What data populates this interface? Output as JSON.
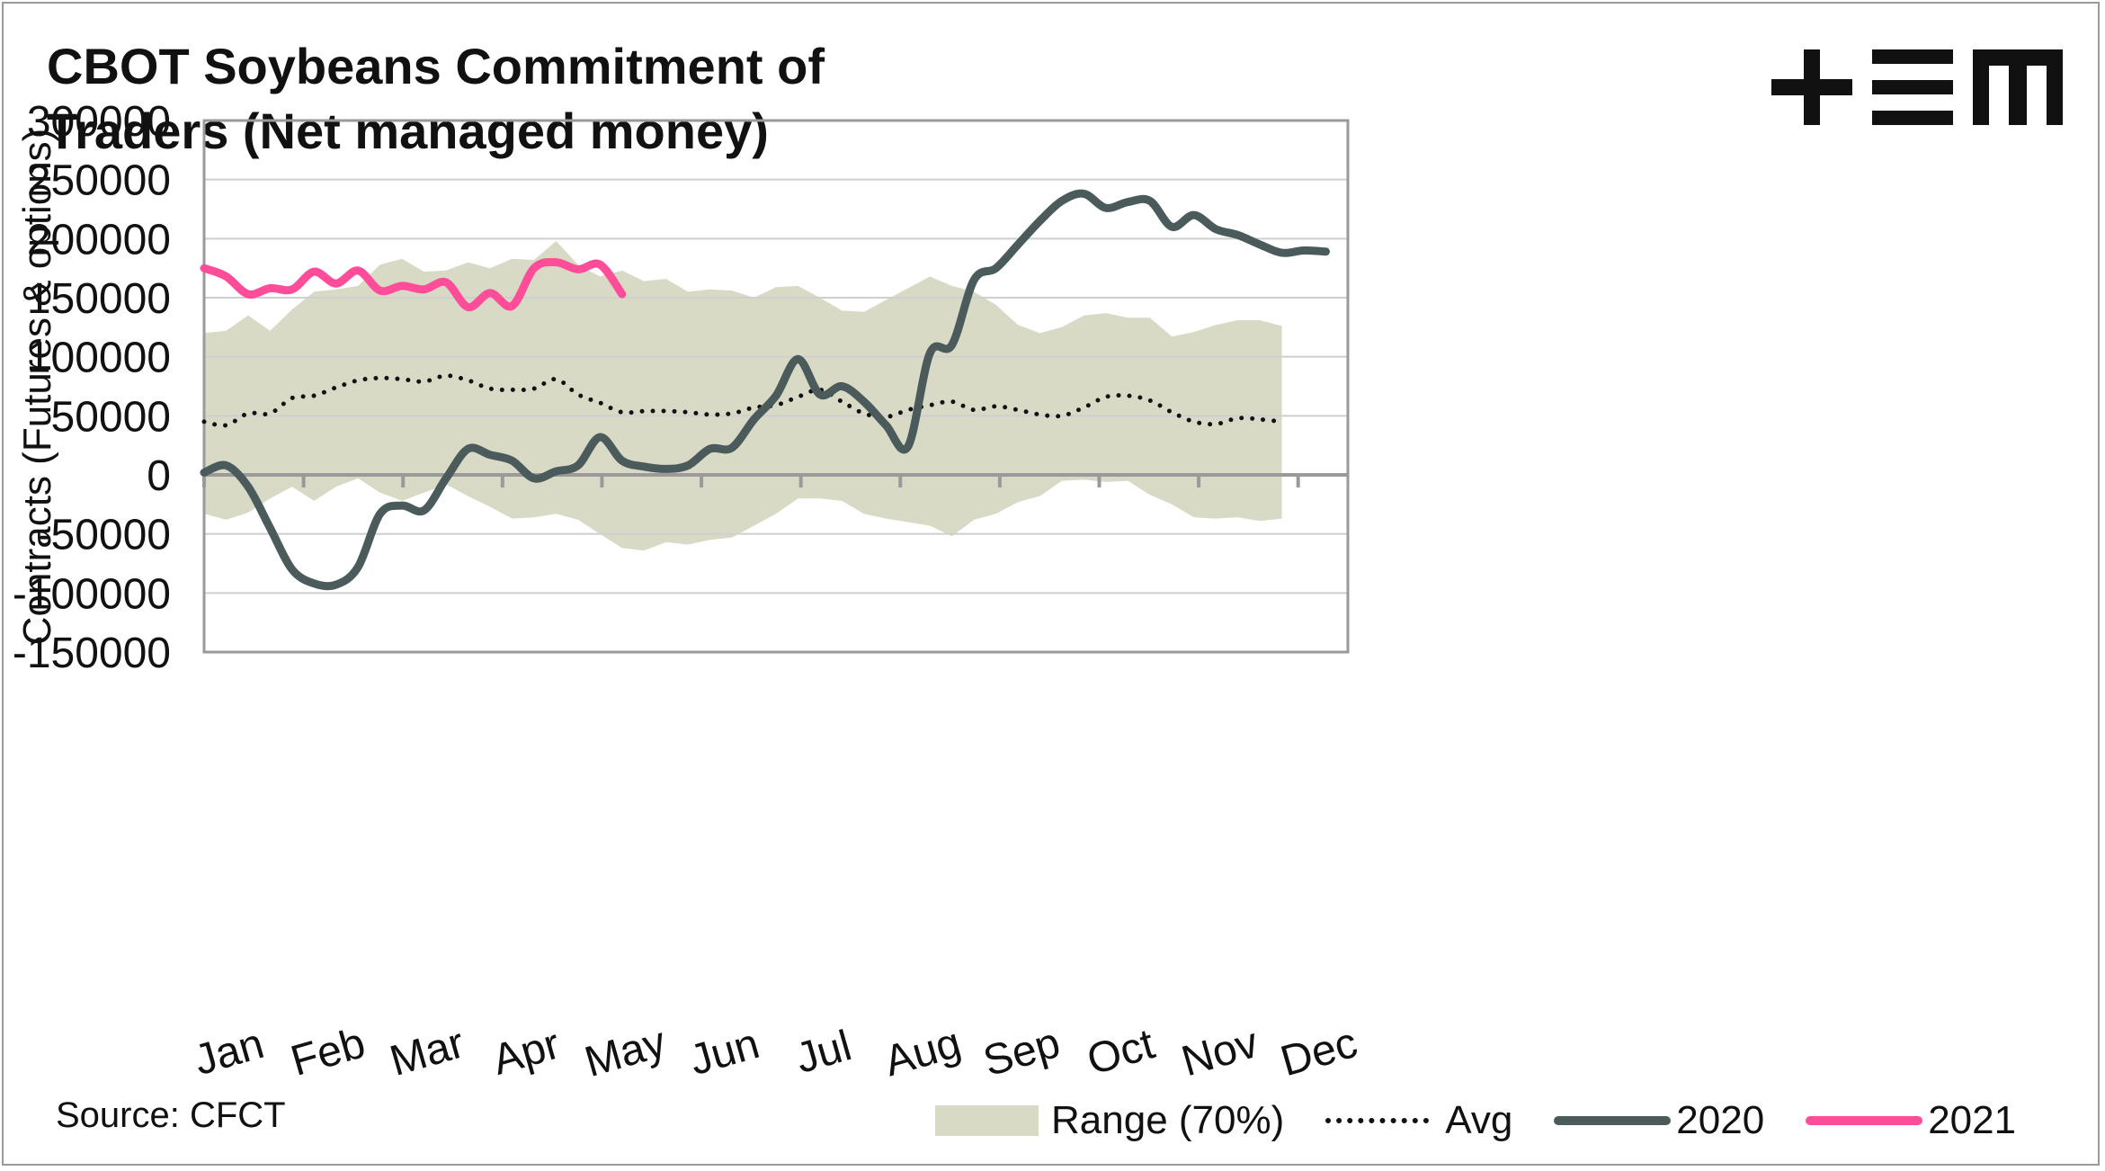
{
  "title": "CBOT Soybeans Commitment of\nTraders (Net managed money)",
  "logo": {
    "name": "tem-logo",
    "text": "TEM"
  },
  "source": "Source: CFCT",
  "colors": {
    "range": "#d9dac6",
    "avg": "#111111",
    "y2020": "#4b5a5a",
    "y2021": "#ff4d9a",
    "grid": "#cfcfcf",
    "axis": "#9a9a9a"
  },
  "chart_data": {
    "type": "line",
    "title": "CBOT Soybeans Commitment of Traders (Net managed money)",
    "xlabel": "",
    "ylabel": "Contracts (Futures & options)",
    "ylim": [
      -150000,
      300000
    ],
    "yticks": [
      300000,
      250000,
      200000,
      150000,
      100000,
      50000,
      0,
      -50000,
      -100000,
      -150000
    ],
    "ytick_labels": [
      "300000",
      "250000",
      "200000",
      "150000",
      "100000",
      "50000",
      "0",
      "-50000",
      "-100000",
      "-150000"
    ],
    "x_unit": "week",
    "x_range": [
      0,
      52
    ],
    "months": [
      "Jan",
      "Feb",
      "Mar",
      "Apr",
      "May",
      "Jun",
      "Jul",
      "Aug",
      "Sep",
      "Oct",
      "Nov",
      "Dec"
    ],
    "legend": [
      {
        "key": "range",
        "label": "Range (70%)"
      },
      {
        "key": "avg",
        "label": "Avg"
      },
      {
        "key": "y2020",
        "label": "2020"
      },
      {
        "key": "y2021",
        "label": "2021"
      }
    ],
    "range_upper": [
      [
        0,
        120000
      ],
      [
        1,
        122000
      ],
      [
        2,
        135000
      ],
      [
        3,
        122000
      ],
      [
        4,
        140000
      ],
      [
        5,
        155000
      ],
      [
        6,
        157000
      ],
      [
        7,
        160000
      ],
      [
        8,
        178000
      ],
      [
        9,
        183000
      ],
      [
        10,
        172000
      ],
      [
        11,
        173000
      ],
      [
        12,
        180000
      ],
      [
        13,
        175000
      ],
      [
        14,
        183000
      ],
      [
        15,
        182000
      ],
      [
        16,
        198000
      ],
      [
        17,
        178000
      ],
      [
        18,
        168000
      ],
      [
        19,
        173000
      ],
      [
        20,
        164000
      ],
      [
        21,
        166000
      ],
      [
        22,
        155000
      ],
      [
        23,
        157000
      ],
      [
        24,
        156000
      ],
      [
        25,
        150000
      ],
      [
        26,
        159000
      ],
      [
        27,
        160000
      ],
      [
        28,
        150000
      ],
      [
        29,
        139000
      ],
      [
        30,
        138000
      ],
      [
        31,
        148000
      ],
      [
        32,
        158000
      ],
      [
        33,
        168000
      ],
      [
        34,
        160000
      ],
      [
        35,
        155000
      ],
      [
        36,
        144000
      ],
      [
        37,
        127000
      ],
      [
        38,
        120000
      ],
      [
        39,
        125000
      ],
      [
        40,
        135000
      ],
      [
        41,
        137000
      ],
      [
        42,
        133000
      ],
      [
        43,
        133000
      ],
      [
        44,
        117000
      ],
      [
        45,
        121000
      ],
      [
        46,
        127000
      ],
      [
        47,
        131000
      ],
      [
        48,
        131000
      ],
      [
        49,
        126000
      ]
    ],
    "range_lower": [
      [
        0,
        -33000
      ],
      [
        1,
        -38000
      ],
      [
        2,
        -32000
      ],
      [
        3,
        -20000
      ],
      [
        4,
        -10000
      ],
      [
        5,
        -22000
      ],
      [
        6,
        -10000
      ],
      [
        7,
        -3000
      ],
      [
        8,
        -15000
      ],
      [
        9,
        -22000
      ],
      [
        10,
        -15000
      ],
      [
        11,
        -8000
      ],
      [
        12,
        -18000
      ],
      [
        13,
        -27000
      ],
      [
        14,
        -37000
      ],
      [
        15,
        -36000
      ],
      [
        16,
        -33000
      ],
      [
        17,
        -38000
      ],
      [
        18,
        -50000
      ],
      [
        19,
        -62000
      ],
      [
        20,
        -64000
      ],
      [
        21,
        -57000
      ],
      [
        22,
        -59000
      ],
      [
        23,
        -55000
      ],
      [
        24,
        -53000
      ],
      [
        25,
        -43000
      ],
      [
        26,
        -33000
      ],
      [
        27,
        -20000
      ],
      [
        28,
        -20000
      ],
      [
        29,
        -22000
      ],
      [
        30,
        -33000
      ],
      [
        31,
        -37000
      ],
      [
        32,
        -40000
      ],
      [
        33,
        -43000
      ],
      [
        34,
        -52000
      ],
      [
        35,
        -38000
      ],
      [
        36,
        -33000
      ],
      [
        37,
        -23000
      ],
      [
        38,
        -18000
      ],
      [
        39,
        -5000
      ],
      [
        40,
        -4000
      ],
      [
        41,
        -6000
      ],
      [
        42,
        -5000
      ],
      [
        43,
        -17000
      ],
      [
        44,
        -25000
      ],
      [
        45,
        -36000
      ],
      [
        46,
        -37000
      ],
      [
        47,
        -36000
      ],
      [
        48,
        -39000
      ],
      [
        49,
        -37000
      ]
    ],
    "avg": [
      [
        0,
        45000
      ],
      [
        1,
        42000
      ],
      [
        2,
        52000
      ],
      [
        3,
        52000
      ],
      [
        4,
        65000
      ],
      [
        5,
        67000
      ],
      [
        6,
        74000
      ],
      [
        7,
        80000
      ],
      [
        8,
        82000
      ],
      [
        9,
        81000
      ],
      [
        10,
        79000
      ],
      [
        11,
        84000
      ],
      [
        12,
        80000
      ],
      [
        13,
        73000
      ],
      [
        14,
        72000
      ],
      [
        15,
        73000
      ],
      [
        16,
        81000
      ],
      [
        17,
        68000
      ],
      [
        18,
        61000
      ],
      [
        19,
        53000
      ],
      [
        20,
        54000
      ],
      [
        21,
        54000
      ],
      [
        22,
        53000
      ],
      [
        23,
        51000
      ],
      [
        24,
        52000
      ],
      [
        25,
        57000
      ],
      [
        26,
        59000
      ],
      [
        27,
        66000
      ],
      [
        28,
        72000
      ],
      [
        29,
        62000
      ],
      [
        30,
        52000
      ],
      [
        31,
        49000
      ],
      [
        32,
        55000
      ],
      [
        33,
        59000
      ],
      [
        34,
        62000
      ],
      [
        35,
        55000
      ],
      [
        36,
        58000
      ],
      [
        37,
        55000
      ],
      [
        38,
        51000
      ],
      [
        39,
        50000
      ],
      [
        40,
        57000
      ],
      [
        41,
        66000
      ],
      [
        42,
        67000
      ],
      [
        43,
        63000
      ],
      [
        44,
        53000
      ],
      [
        45,
        45000
      ],
      [
        46,
        43000
      ],
      [
        47,
        48000
      ],
      [
        48,
        47000
      ],
      [
        49,
        45000
      ]
    ],
    "series": [
      {
        "name": "2020",
        "key": "y2020",
        "points": [
          [
            0,
            2000
          ],
          [
            1,
            8000
          ],
          [
            2,
            -10000
          ],
          [
            3,
            -45000
          ],
          [
            4,
            -80000
          ],
          [
            5,
            -92000
          ],
          [
            6,
            -93000
          ],
          [
            7,
            -78000
          ],
          [
            8,
            -33000
          ],
          [
            9,
            -26000
          ],
          [
            10,
            -30000
          ],
          [
            11,
            -3000
          ],
          [
            12,
            22000
          ],
          [
            13,
            17000
          ],
          [
            14,
            12000
          ],
          [
            15,
            -3000
          ],
          [
            16,
            3000
          ],
          [
            17,
            8000
          ],
          [
            18,
            32000
          ],
          [
            19,
            12000
          ],
          [
            20,
            7000
          ],
          [
            21,
            5000
          ],
          [
            22,
            8000
          ],
          [
            23,
            22000
          ],
          [
            24,
            23000
          ],
          [
            25,
            47000
          ],
          [
            26,
            67000
          ],
          [
            27,
            98000
          ],
          [
            28,
            68000
          ],
          [
            29,
            75000
          ],
          [
            30,
            62000
          ],
          [
            31,
            42000
          ],
          [
            32,
            24000
          ],
          [
            33,
            103000
          ],
          [
            34,
            110000
          ],
          [
            35,
            165000
          ],
          [
            36,
            175000
          ],
          [
            37,
            195000
          ],
          [
            38,
            215000
          ],
          [
            39,
            232000
          ],
          [
            40,
            238000
          ],
          [
            41,
            226000
          ],
          [
            42,
            231000
          ],
          [
            43,
            232000
          ],
          [
            44,
            210000
          ],
          [
            45,
            220000
          ],
          [
            46,
            208000
          ],
          [
            47,
            203000
          ],
          [
            48,
            195000
          ],
          [
            49,
            188000
          ],
          [
            50,
            190000
          ],
          [
            51,
            189000
          ]
        ]
      },
      {
        "name": "2021",
        "key": "y2021",
        "points": [
          [
            0,
            175000
          ],
          [
            1,
            168000
          ],
          [
            2,
            153000
          ],
          [
            3,
            158000
          ],
          [
            4,
            157000
          ],
          [
            5,
            172000
          ],
          [
            6,
            162000
          ],
          [
            7,
            173000
          ],
          [
            8,
            156000
          ],
          [
            9,
            160000
          ],
          [
            10,
            157000
          ],
          [
            11,
            163000
          ],
          [
            12,
            142000
          ],
          [
            13,
            154000
          ],
          [
            14,
            143000
          ],
          [
            15,
            175000
          ],
          [
            16,
            180000
          ],
          [
            17,
            174000
          ],
          [
            18,
            178000
          ],
          [
            19,
            153000
          ]
        ]
      }
    ]
  }
}
